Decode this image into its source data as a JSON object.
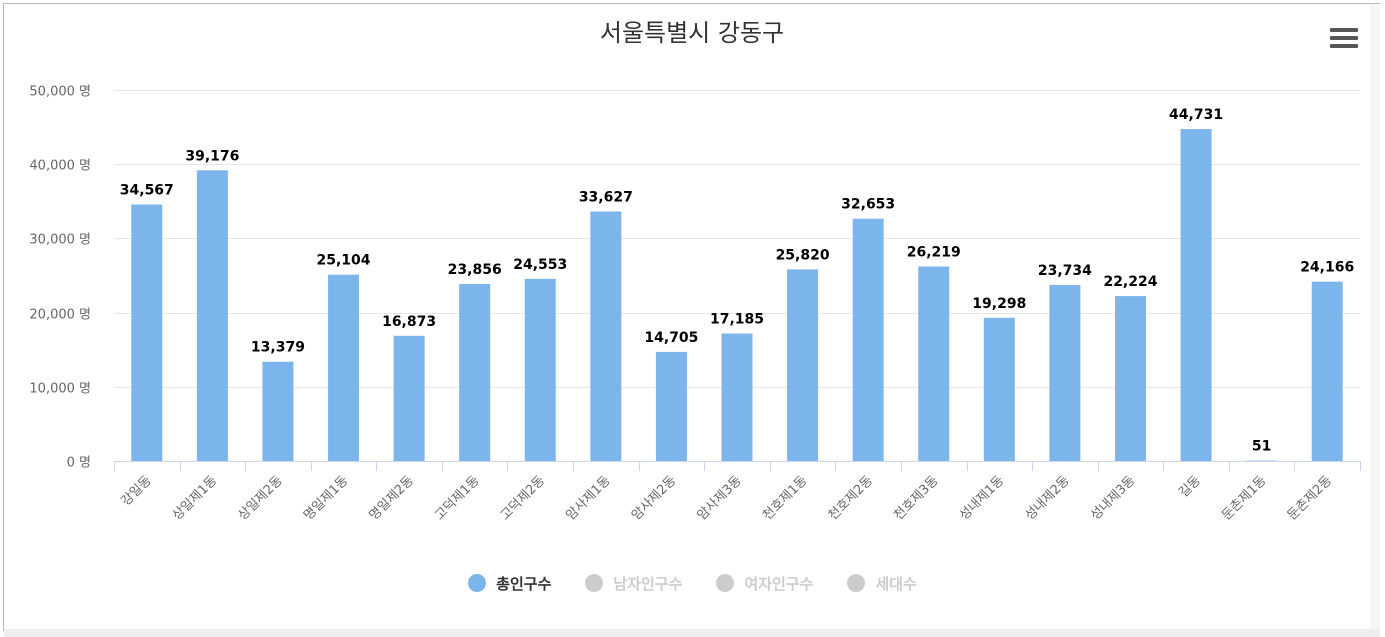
{
  "chart_data": {
    "type": "bar",
    "title": "서울특별시 강동구",
    "categories": [
      "강일동",
      "상일제1동",
      "상일제2동",
      "명일제1동",
      "명일제2동",
      "고덕제1동",
      "고덕제2동",
      "암사제1동",
      "암사제2동",
      "암사제3동",
      "천호제1동",
      "천호제2동",
      "천호제3동",
      "성내제1동",
      "성내제2동",
      "성내제3동",
      "길동",
      "둔촌제1동",
      "둔촌제2동"
    ],
    "series": [
      {
        "name": "총인구수",
        "values": [
          34567,
          39176,
          13379,
          25104,
          16873,
          23856,
          24553,
          33627,
          14705,
          17185,
          25820,
          32653,
          26219,
          19298,
          23734,
          22224,
          44731,
          51,
          24166
        ]
      }
    ],
    "data_labels": [
      "34,567",
      "39,176",
      "13,379",
      "25,104",
      "16,873",
      "23,856",
      "24,553",
      "33,627",
      "14,705",
      "17,185",
      "25,820",
      "32,653",
      "26,219",
      "19,298",
      "23,734",
      "22,224",
      "44,731",
      "51",
      "24,166"
    ],
    "ylim": [
      0,
      50000
    ],
    "yticks": [
      0,
      10000,
      20000,
      30000,
      40000,
      50000
    ],
    "ytick_labels": [
      "0 명",
      "10,000 명",
      "20,000 명",
      "30,000 명",
      "40,000 명",
      "50,000 명"
    ],
    "xlabel": "",
    "ylabel": "",
    "grid": true,
    "legend_position": "bottom-center"
  },
  "legend": {
    "items": [
      {
        "label": "총인구수",
        "active": true,
        "color": "#7cb5ec"
      },
      {
        "label": "남자인구수",
        "active": false,
        "color": "#cccccc"
      },
      {
        "label": "여자인구수",
        "active": false,
        "color": "#cccccc"
      },
      {
        "label": "세대수",
        "active": false,
        "color": "#cccccc"
      }
    ]
  },
  "colors": {
    "bar": "#7cb5ec",
    "grid": "#e6e6e6",
    "axis": "#ccd6eb",
    "title_text": "#333333",
    "tick_text": "#666666",
    "legend_active_text": "#333333",
    "legend_inactive_text": "#cccccc"
  },
  "menu": {
    "icon": "hamburger-menu-icon"
  }
}
